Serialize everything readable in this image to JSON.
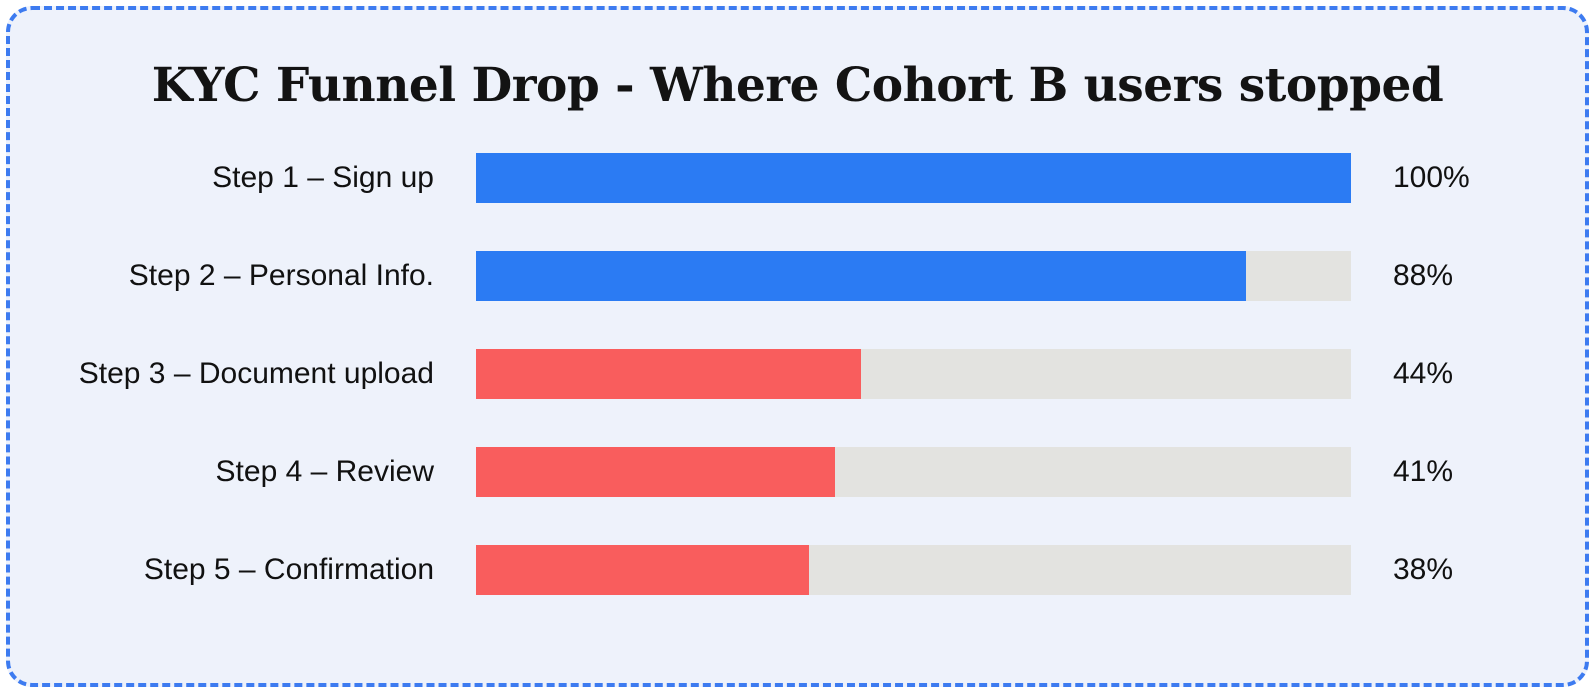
{
  "colors": {
    "card_background": "#EEF2FB",
    "border": "#3D7BF0",
    "track": "#E3E3E0",
    "blue_bar": "#2B7BF3",
    "red_bar": "#F95D5D",
    "text": "#111111"
  },
  "chart_data": {
    "type": "bar",
    "orientation": "horizontal",
    "title": "KYC Funnel Drop - Where Cohort B users stopped",
    "categories": [
      "Step 1 – Sign up",
      "Step 2 – Personal Info.",
      "Step 3 – Document upload",
      "Step 4 – Review",
      "Step 5 – Confirmation"
    ],
    "values": [
      100,
      88,
      44,
      41,
      38
    ],
    "value_labels": [
      "100%",
      "88%",
      "44%",
      "41%",
      "38%"
    ],
    "bar_colors": [
      "#2B7BF3",
      "#2B7BF3",
      "#F95D5D",
      "#F95D5D",
      "#F95D5D"
    ],
    "xlim": [
      0,
      100
    ],
    "grid": false,
    "legend": false,
    "xlabel": "",
    "ylabel": ""
  }
}
